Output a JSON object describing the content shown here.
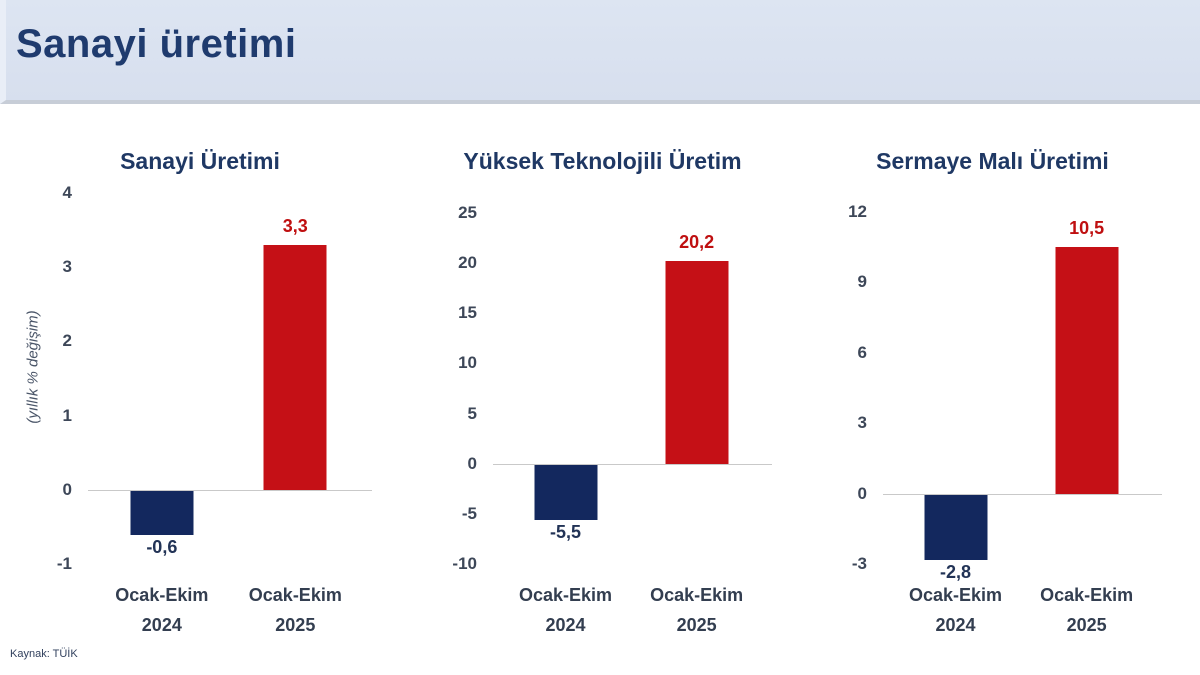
{
  "header": {
    "title": "Sanayi üretimi"
  },
  "source_note": "Kaynak: TÜİK",
  "colors": {
    "header_bg": "#dde5f2",
    "header_title": "#1f3b6e",
    "chart_title": "#1f3864",
    "bar_2024": "#13285e",
    "bar_2025": "#c51016",
    "value_label_2024": "#223356",
    "value_label_2025": "#bf0f10",
    "tick_text": "#3d4758",
    "axis_line": "#c9c9c9"
  },
  "chart_data": [
    {
      "type": "bar",
      "title": "Sanayi Üretimi",
      "ylabel": "(yıllık % değişim)",
      "categories": [
        "Ocak-Ekim 2024",
        "Ocak-Ekim 2025"
      ],
      "category_lines": [
        [
          "Ocak-Ekim",
          "2024"
        ],
        [
          "Ocak-Ekim",
          "2025"
        ]
      ],
      "values": [
        -0.6,
        3.3
      ],
      "value_labels": [
        "-0,6",
        "3,3"
      ],
      "bar_colors": [
        "#13285e",
        "#c51016"
      ],
      "value_label_colors": [
        "#223356",
        "#bf0f10"
      ],
      "yticks": [
        4,
        3,
        2,
        1,
        0,
        -1
      ],
      "ylim": [
        -1,
        4
      ],
      "grid": false,
      "legend": "none"
    },
    {
      "type": "bar",
      "title": "Yüksek Teknolojili Üretim",
      "ylabel": "",
      "categories": [
        "Ocak-Ekim 2024",
        "Ocak-Ekim 2025"
      ],
      "category_lines": [
        [
          "Ocak-Ekim",
          "2024"
        ],
        [
          "Ocak-Ekim",
          "2025"
        ]
      ],
      "values": [
        -5.5,
        20.2
      ],
      "value_labels": [
        "-5,5",
        "20,2"
      ],
      "bar_colors": [
        "#13285e",
        "#c51016"
      ],
      "value_label_colors": [
        "#223356",
        "#bf0f10"
      ],
      "yticks": [
        25,
        20,
        15,
        10,
        5,
        0,
        -5,
        -10
      ],
      "ylim": [
        -10,
        25
      ],
      "grid": false,
      "legend": "none"
    },
    {
      "type": "bar",
      "title": "Sermaye Malı Üretimi",
      "ylabel": "",
      "categories": [
        "Ocak-Ekim 2024",
        "Ocak-Ekim 2025"
      ],
      "category_lines": [
        [
          "Ocak-Ekim",
          "2024"
        ],
        [
          "Ocak-Ekim",
          "2025"
        ]
      ],
      "values": [
        -2.8,
        10.5
      ],
      "value_labels": [
        "-2,8",
        "10,5"
      ],
      "bar_colors": [
        "#13285e",
        "#c51016"
      ],
      "value_label_colors": [
        "#223356",
        "#bf0f10"
      ],
      "yticks": [
        12,
        9,
        6,
        3,
        0,
        -3
      ],
      "ylim": [
        -3,
        12
      ],
      "grid": false,
      "legend": "none"
    }
  ]
}
